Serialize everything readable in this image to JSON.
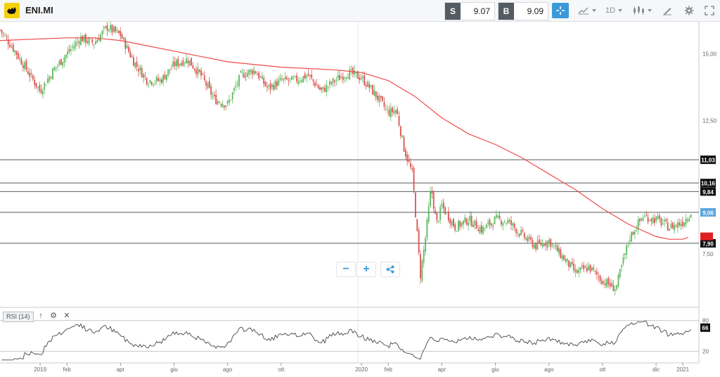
{
  "header": {
    "symbol": "ENI.MI",
    "sell_label": "S",
    "sell_value": "9.07",
    "buy_label": "B",
    "buy_value": "9.09",
    "timeframe": "1D"
  },
  "icons": {
    "logo": "eni-dog-logo",
    "crosshair": "crosshair-icon",
    "chart_type": "line-chart-icon",
    "candles": "candlestick-icon",
    "draw": "pencil-icon",
    "settings": "gear-icon",
    "fullscreen": "fullscreen-icon",
    "zoom_out": "minus-icon",
    "zoom_in": "plus-icon",
    "share": "share-icon"
  },
  "colors": {
    "bull": "#5cb85c",
    "bear": "#d9534f",
    "ma": "#ef4a4a",
    "accent": "#3a9ad9",
    "current_price_tag": "#5aa6dd",
    "ma_tag": "#e02020"
  },
  "chart_data": {
    "type": "candlestick",
    "y_ticks": [
      "15,00",
      "12,50",
      "7,50"
    ],
    "y_tick_values": [
      15.0,
      12.5,
      7.5
    ],
    "ylim": [
      5.5,
      16.2
    ],
    "x_ticks": [
      "2019",
      "feb",
      "apr",
      "giu",
      "ago",
      "ott",
      "2020",
      "feb",
      "apr",
      "giu",
      "ago",
      "ott",
      "dic",
      "2021"
    ],
    "x_tick_months": [
      0,
      1,
      3,
      5,
      7,
      9,
      12,
      13,
      15,
      17,
      19,
      21,
      23,
      24
    ],
    "xlim_months": [
      -1.5,
      24.6
    ],
    "horizontal_lines": [
      {
        "value": 11.03,
        "label": "11,03"
      },
      {
        "value": 10.16,
        "label": "10,16"
      },
      {
        "value": 9.84,
        "label": "9,84"
      },
      {
        "value": 9.06,
        "label": "9,06"
      },
      {
        "value": 7.9,
        "label": "7,90"
      }
    ],
    "current_price_label": "9,06",
    "moving_average": {
      "months": [
        -1.5,
        1.0,
        2.0,
        3.0,
        4.0,
        5.0,
        6.0,
        7.0,
        9.0,
        11.0,
        12.0,
        13.0,
        14.0,
        15.0,
        16.0,
        17.0,
        18.0,
        19.0,
        20.0,
        21.0,
        22.0,
        23.0,
        23.5,
        24.0,
        24.2
      ],
      "values": [
        15.5,
        15.6,
        15.6,
        15.5,
        15.3,
        15.1,
        14.9,
        14.7,
        14.5,
        14.4,
        14.3,
        14.0,
        13.4,
        12.6,
        12.0,
        11.6,
        11.1,
        10.5,
        9.9,
        9.2,
        8.6,
        8.15,
        8.05,
        8.05,
        8.12
      ]
    },
    "candles": {
      "months": [
        -1.5,
        -1.0,
        -0.5,
        0.0,
        0.5,
        1.0,
        1.5,
        2.0,
        2.5,
        3.0,
        3.5,
        4.0,
        4.5,
        5.0,
        5.5,
        6.0,
        6.5,
        7.0,
        7.5,
        8.0,
        8.5,
        9.0,
        9.5,
        10.0,
        10.5,
        11.0,
        11.5,
        12.0,
        12.5,
        13.0,
        13.3,
        13.6,
        13.9,
        14.2,
        14.4,
        14.6,
        14.8,
        15.0,
        15.5,
        16.0,
        16.5,
        17.0,
        17.5,
        18.0,
        18.5,
        19.0,
        19.5,
        20.0,
        20.5,
        21.0,
        21.5,
        22.0,
        22.5,
        23.0,
        23.5,
        24.0,
        24.3
      ],
      "close": [
        15.9,
        15.2,
        14.4,
        13.6,
        14.4,
        15.0,
        15.6,
        15.4,
        16.0,
        15.7,
        14.7,
        14.0,
        14.0,
        14.6,
        14.8,
        14.2,
        13.3,
        13.1,
        14.2,
        14.4,
        13.7,
        14.0,
        14.0,
        14.2,
        13.6,
        14.0,
        14.3,
        14.1,
        13.5,
        12.8,
        12.9,
        11.4,
        10.5,
        6.7,
        8.2,
        10.0,
        8.6,
        9.3,
        8.5,
        8.8,
        8.4,
        8.8,
        8.7,
        8.2,
        7.8,
        8.0,
        7.4,
        6.8,
        7.0,
        6.5,
        6.2,
        8.1,
        8.9,
        8.8,
        8.5,
        8.7,
        9.06
      ]
    },
    "rsi": {
      "label": "RSI (14)",
      "period": 14,
      "levels": [
        80,
        20
      ],
      "level_labels": [
        "80",
        "20"
      ],
      "current": 66,
      "current_label": "66"
    }
  }
}
